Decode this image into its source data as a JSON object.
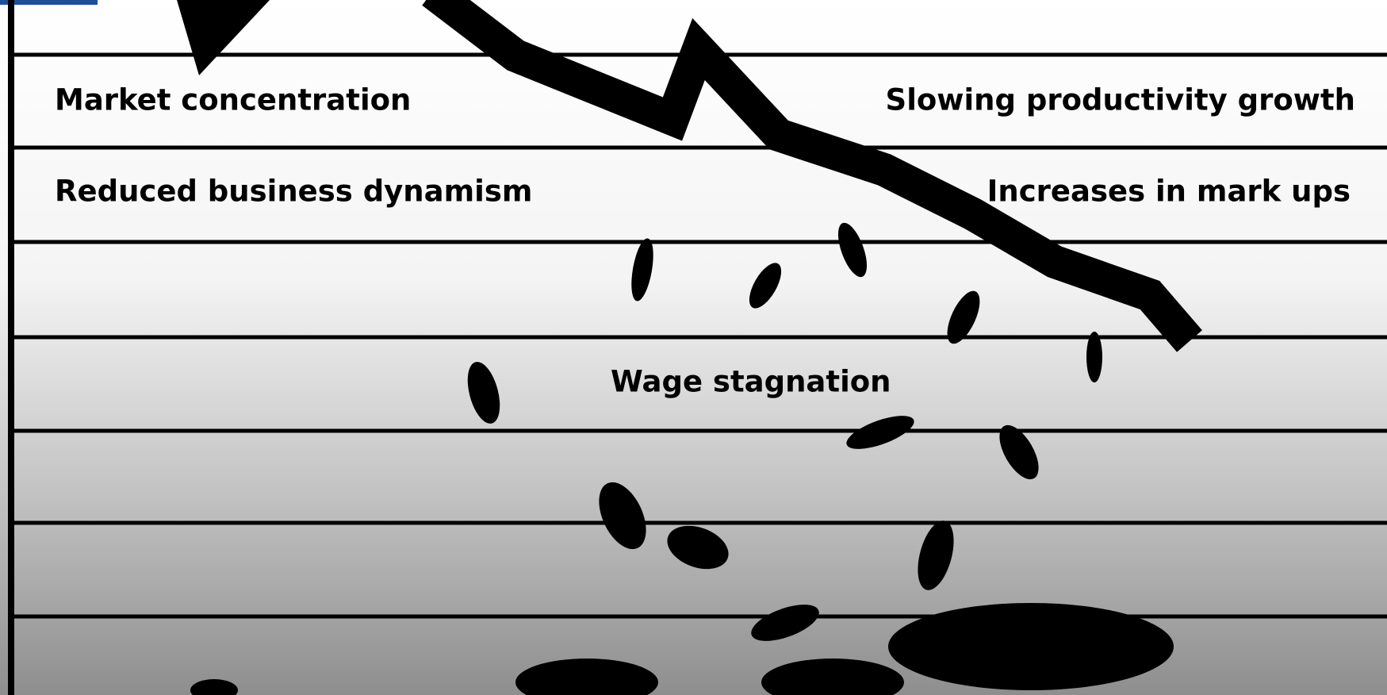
{
  "labels": [
    "Market concentration",
    "Slowing productivity growth",
    "Reduced business dynamism",
    "Increases in mark ups",
    "Wage stagnation"
  ]
}
